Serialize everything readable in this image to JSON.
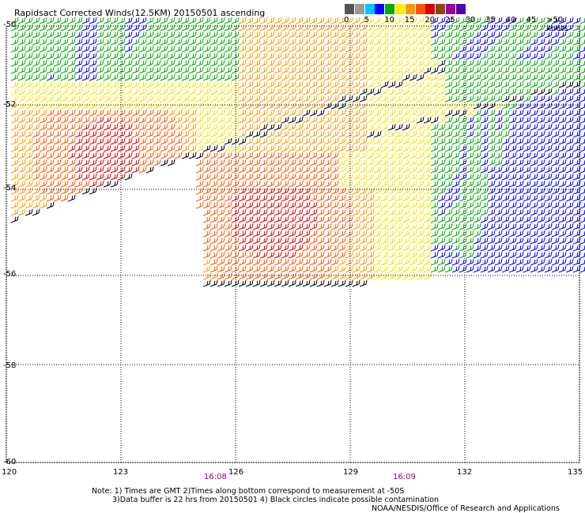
{
  "title": "Rapidsact Corrected Winds(12.5KM) 20150501 ascending",
  "legend": {
    "labels": [
      "0",
      "5",
      "10",
      "15",
      "20",
      "25",
      "30",
      "35",
      "40",
      "45",
      ">50 knots"
    ],
    "colors": [
      "#555555",
      "#999999",
      "#00c8ff",
      "#0000ff",
      "#00aa00",
      "#ffee00",
      "#ff9900",
      "#ff5500",
      "#dd0000",
      "#8b4513",
      "#990099",
      "#5500aa"
    ]
  },
  "axes": {
    "lat_labels": [
      "-50",
      "-52",
      "-54",
      "-56",
      "-58",
      "-60"
    ],
    "lon_labels": [
      "120",
      "123",
      "126",
      "129",
      "132",
      "135"
    ]
  },
  "times": [
    "16:08",
    "16:09"
  ],
  "notes": {
    "line1": "Note: 1) Times are GMT 2)Times along bottom correspond to measurement at -50S",
    "line2": "3)Data buffer is 22 hrs from 20150501 4) Black circles indicate possible contamination",
    "credit": "NOAA/NESDIS/Office of Research and Applications"
  }
}
